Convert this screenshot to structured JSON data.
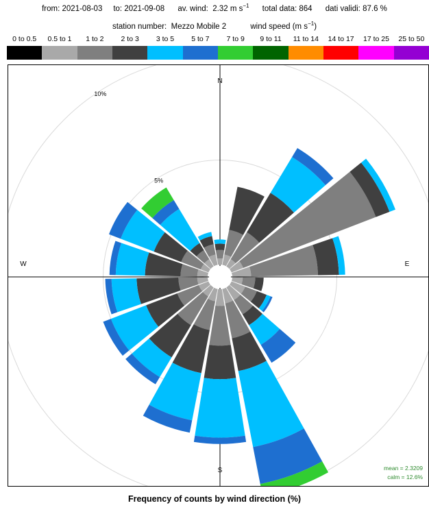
{
  "header": {
    "from_label": "from:",
    "from_date": "2021-08-03",
    "to_label": "to:",
    "to_date": "2021-09-08",
    "avwind_label": "av. wind:",
    "avwind_value": "2.32 m s",
    "avwind_exp": "−1",
    "total_label": "total data:",
    "total_value": "864",
    "valid_label": "dati validi:",
    "valid_value": "87.6 %",
    "station_label": "station number:",
    "station_value": "Mezzo Mobile 2",
    "speed_label": "wind speed (m s",
    "speed_exp": "−1",
    "speed_close": ")"
  },
  "legend": [
    {
      "label": "0 to 0.5",
      "color": "#000000"
    },
    {
      "label": "0.5 to 1",
      "color": "#a9a9a9"
    },
    {
      "label": "1 to 2",
      "color": "#7f7f7f"
    },
    {
      "label": "2 to 3",
      "color": "#404040"
    },
    {
      "label": "3 to 5",
      "color": "#00bfff"
    },
    {
      "label": "5 to 7",
      "color": "#1e6fd0"
    },
    {
      "label": "7 to 9",
      "color": "#32cd32"
    },
    {
      "label": "9 to 11",
      "color": "#006400"
    },
    {
      "label": "11 to 14",
      "color": "#ff8c00"
    },
    {
      "label": "14 to 17",
      "color": "#ff0000"
    },
    {
      "label": "17 to 25",
      "color": "#ff00ff"
    },
    {
      "label": "25 to 50",
      "color": "#9400d3"
    }
  ],
  "chart_data": {
    "type": "windrose",
    "direction_labels": [
      "N",
      "E",
      "S",
      "W"
    ],
    "rings": [
      {
        "value": 5,
        "label": "5%"
      },
      {
        "value": 10,
        "label": "10%"
      }
    ],
    "calm_percent": 12.6,
    "speed_bins": [
      "0 to 0.5",
      "0.5 to 1",
      "1 to 2",
      "2 to 3",
      "3 to 5",
      "5 to 7",
      "7 to 9",
      "9 to 11",
      "11 to 14",
      "14 to 17",
      "17 to 25",
      "25 to 50"
    ],
    "sectors": [
      {
        "dir": 0,
        "values": [
          0,
          0.3,
          0.4,
          0.3,
          0.2,
          0,
          0,
          0,
          0,
          0,
          0,
          0
        ]
      },
      {
        "dir": 20,
        "values": [
          0,
          0.5,
          1.2,
          2.1,
          0,
          0,
          0,
          0,
          0,
          0,
          0,
          0
        ]
      },
      {
        "dir": 40,
        "values": [
          0,
          0.4,
          1.5,
          2.2,
          2.0,
          0.5,
          0,
          0,
          0,
          0,
          0,
          0
        ]
      },
      {
        "dir": 60,
        "values": [
          0,
          0.6,
          6.8,
          0.7,
          0.3,
          0,
          0,
          0,
          0,
          0,
          0,
          0
        ]
      },
      {
        "dir": 80,
        "values": [
          0,
          0.9,
          3.2,
          1.0,
          0.3,
          0,
          0,
          0,
          0,
          0,
          0,
          0
        ]
      },
      {
        "dir": 100,
        "values": [
          0,
          0.5,
          0.6,
          0.4,
          0,
          0,
          0,
          0,
          0,
          0,
          0,
          0
        ]
      },
      {
        "dir": 120,
        "values": [
          0,
          0.7,
          0.6,
          0.5,
          0.2,
          0.1,
          0,
          0,
          0,
          0,
          0,
          0
        ]
      },
      {
        "dir": 140,
        "values": [
          0,
          0.7,
          0.8,
          0.6,
          1.1,
          1.0,
          0,
          0,
          0,
          0,
          0,
          0
        ]
      },
      {
        "dir": 160,
        "values": [
          0,
          0.7,
          1.7,
          1.6,
          3.7,
          1.8,
          0.6,
          0,
          0,
          0,
          0,
          0
        ]
      },
      {
        "dir": 180,
        "values": [
          0,
          0.8,
          1.9,
          1.6,
          2.8,
          0.3,
          0,
          0,
          0,
          0,
          0,
          0
        ]
      },
      {
        "dir": 200,
        "values": [
          0,
          0.6,
          1.4,
          2.1,
          2.3,
          0.6,
          0,
          0,
          0,
          0,
          0,
          0
        ]
      },
      {
        "dir": 220,
        "values": [
          0,
          0.5,
          1.6,
          1.8,
          1.1,
          0.4,
          0,
          0,
          0,
          0,
          0,
          0
        ]
      },
      {
        "dir": 240,
        "values": [
          0,
          0.5,
          1.1,
          1.6,
          1.8,
          0.4,
          0,
          0,
          0,
          0,
          0,
          0
        ]
      },
      {
        "dir": 260,
        "values": [
          0,
          0.5,
          0.9,
          2.0,
          1.2,
          0.3,
          0,
          0,
          0,
          0,
          0,
          0
        ]
      },
      {
        "dir": 280,
        "values": [
          0,
          0.5,
          0.8,
          1.7,
          1.4,
          0.3,
          0,
          0,
          0,
          0,
          0,
          0
        ]
      },
      {
        "dir": 300,
        "values": [
          0,
          0.4,
          1.0,
          1.4,
          1.7,
          0.6,
          0,
          0,
          0,
          0,
          0,
          0
        ]
      },
      {
        "dir": 320,
        "values": [
          0,
          0.4,
          0.5,
          0.4,
          1.9,
          0.5,
          0.7,
          0,
          0,
          0,
          0,
          0
        ]
      },
      {
        "dir": 340,
        "values": [
          0,
          0.5,
          0.5,
          0.4,
          0.2,
          0,
          0,
          0,
          0,
          0,
          0,
          0
        ]
      }
    ],
    "mean_label": "mean = 2.3209",
    "calm_label": "calm = 12.6%",
    "title": "Frequency of counts by wind direction (%)",
    "grid": true
  }
}
